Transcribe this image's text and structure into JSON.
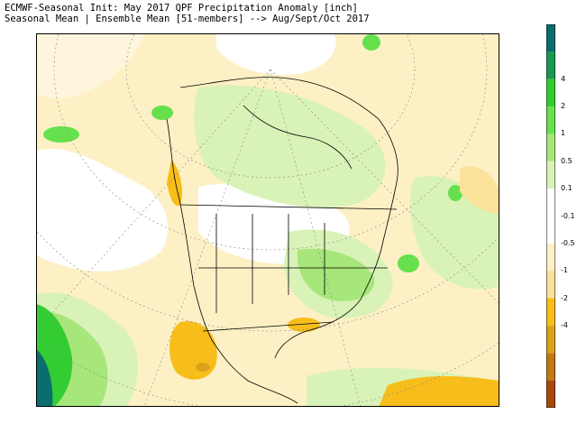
{
  "title": {
    "line1": "ECMWF-Seasonal Init: May 2017 QPF Precipitation Anomaly [inch]",
    "line2": "Seasonal Mean | Ensemble Mean [51-members] --> Aug/Sept/Oct 2017"
  },
  "colorbar": {
    "bands": [
      {
        "color": "#0a6e6e"
      },
      {
        "color": "#1a9850"
      },
      {
        "color": "#33cc33"
      },
      {
        "color": "#66e04d"
      },
      {
        "color": "#a6e67a"
      },
      {
        "color": "#d9f2b8"
      },
      {
        "color": "#ffffff"
      },
      {
        "color": "#ffffff"
      },
      {
        "color": "#fdf0c4"
      },
      {
        "color": "#fbe299"
      },
      {
        "color": "#f7bd1a"
      },
      {
        "color": "#dba21a"
      },
      {
        "color": "#c07a12"
      },
      {
        "color": "#a54a0a"
      }
    ],
    "labels": [
      "4",
      "2",
      "1",
      "0.5",
      "0.1",
      "-0.1",
      "-0.5",
      "-1",
      "-2",
      "-4"
    ]
  }
}
